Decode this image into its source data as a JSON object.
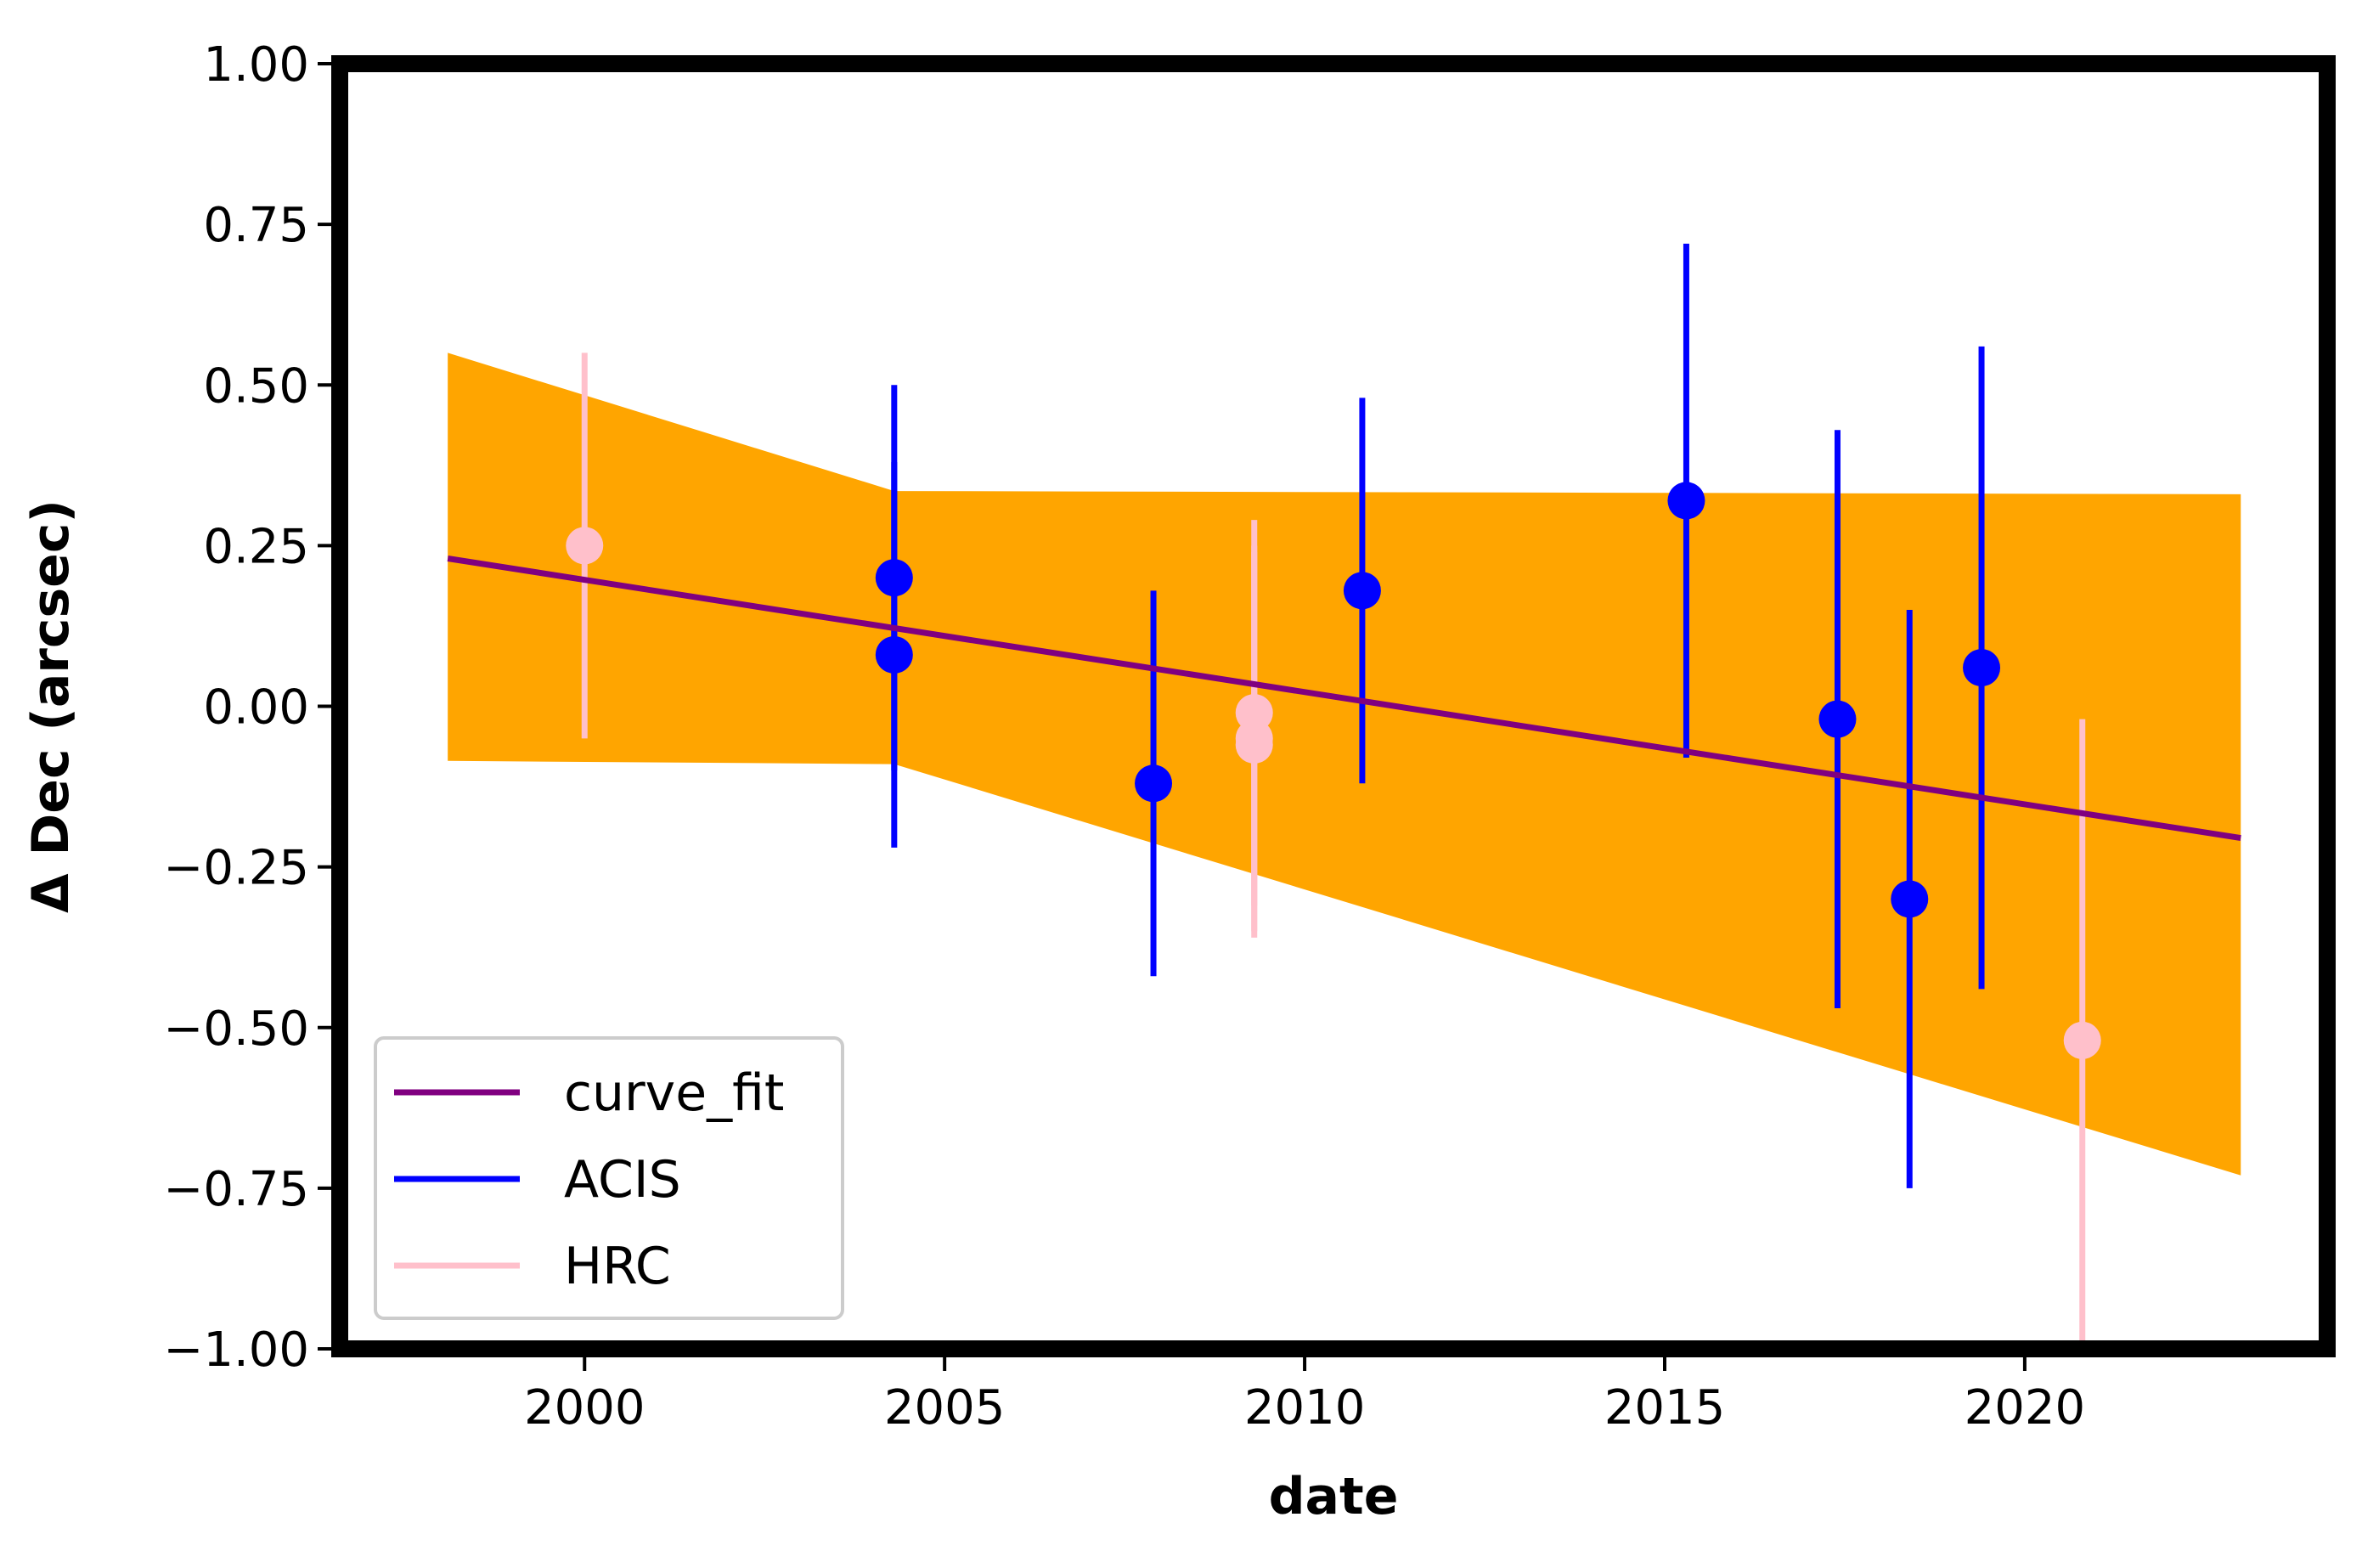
{
  "chart_data": {
    "type": "scatter",
    "title": "",
    "xlabel": "date",
    "ylabel": "Δ Dec (arcsec)",
    "xlim": [
      1996.6,
      2024.2
    ],
    "ylim": [
      -1.0,
      1.0
    ],
    "x_ticks": [
      2000,
      2005,
      2010,
      2015,
      2020
    ],
    "x_tick_labels": [
      "2000",
      "2005",
      "2010",
      "2015",
      "2020"
    ],
    "y_ticks": [
      1.0,
      0.75,
      0.5,
      0.25,
      0.0,
      -0.25,
      -0.5,
      -0.75,
      -1.0
    ],
    "y_tick_labels": [
      "1.00",
      "0.75",
      "0.50",
      "0.25",
      "0.00",
      "−0.25",
      "−0.50",
      "−0.75",
      "−1.00"
    ],
    "grid": false,
    "legend": "lower-left",
    "series": [
      {
        "name": "curve_fit",
        "kind": "line",
        "color": "#800080",
        "x": [
          1998.1,
          2023.0
        ],
        "y": [
          0.23,
          -0.205
        ]
      },
      {
        "name": "ACIS",
        "kind": "errorbar",
        "color": "#0000ff",
        "points": [
          {
            "x": 2004.3,
            "y": 0.2,
            "err": 0.3
          },
          {
            "x": 2004.3,
            "y": 0.08,
            "err": 0.3
          },
          {
            "x": 2007.9,
            "y": -0.12,
            "err": 0.3
          },
          {
            "x": 2010.8,
            "y": 0.18,
            "err": 0.3
          },
          {
            "x": 2015.3,
            "y": 0.32,
            "err": 0.4
          },
          {
            "x": 2017.4,
            "y": -0.02,
            "err": 0.45
          },
          {
            "x": 2018.4,
            "y": -0.3,
            "err": 0.45
          },
          {
            "x": 2019.4,
            "y": 0.06,
            "err": 0.5
          }
        ]
      },
      {
        "name": "HRC",
        "kind": "errorbar",
        "color": "#ffc0cb",
        "points": [
          {
            "x": 2000.0,
            "y": 0.25,
            "err": 0.3
          },
          {
            "x": 2009.3,
            "y": -0.01,
            "err": 0.3
          },
          {
            "x": 2009.3,
            "y": -0.05,
            "err": 0.3
          },
          {
            "x": 2009.3,
            "y": -0.06,
            "err": 0.3
          },
          {
            "x": 2020.8,
            "y": -0.52,
            "err": 0.5
          }
        ]
      }
    ],
    "band": {
      "color": "#ffa500",
      "x": [
        1998.1,
        2004.3,
        2023.0
      ],
      "upper": [
        0.55,
        0.335,
        0.33
      ],
      "lower": [
        -0.085,
        -0.09,
        -0.73
      ]
    }
  }
}
